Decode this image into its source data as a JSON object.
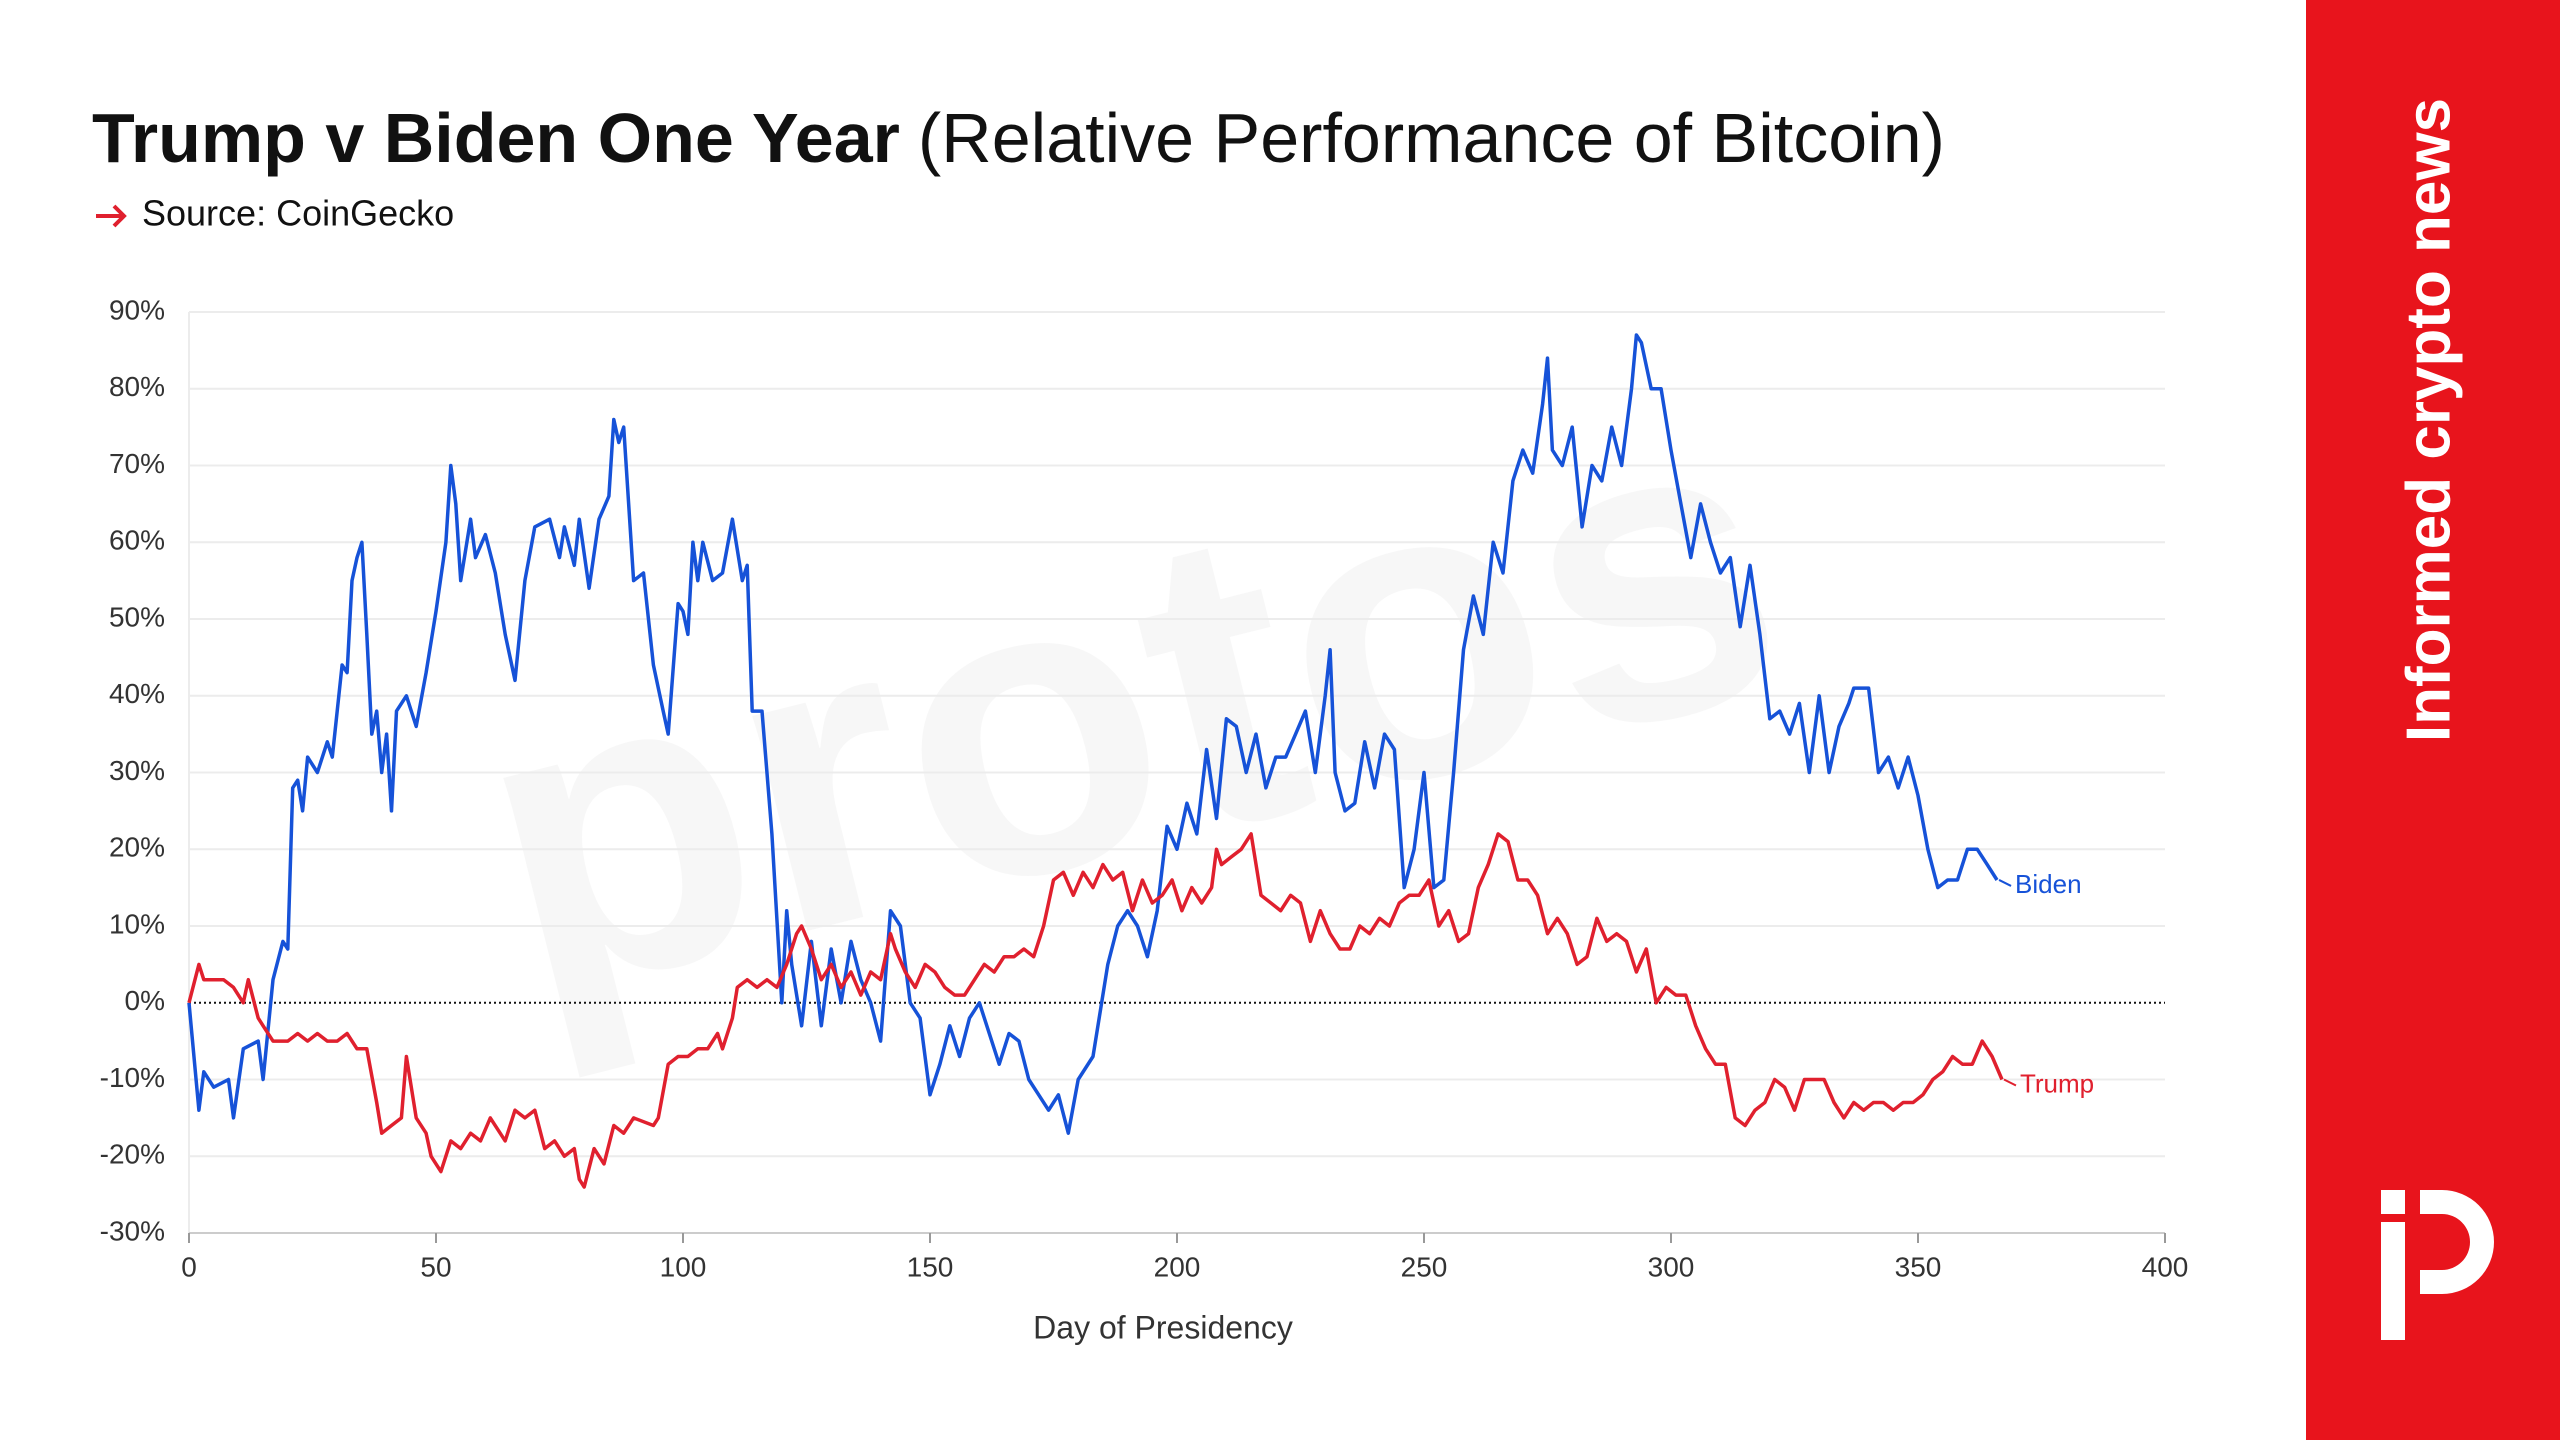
{
  "chart_data": {
    "type": "line",
    "title": "Trump v Biden One Year",
    "title_suffix": "(Relative Performance of Bitcoin)",
    "source": "Source: CoinGecko",
    "brand_tagline": "Informed crypto news",
    "watermark": "protos",
    "x_label": "Day of Presidency",
    "xlim": [
      0,
      400
    ],
    "xticks": [
      0,
      50,
      100,
      150,
      200,
      250,
      300,
      350,
      400
    ],
    "ylim": [
      -30,
      90
    ],
    "yticks": [
      {
        "value": -30,
        "label": "-30%"
      },
      {
        "value": -20,
        "label": "-20%"
      },
      {
        "value": -10,
        "label": "-10%"
      },
      {
        "value": 0,
        "label": "0%"
      },
      {
        "value": 10,
        "label": "10%"
      },
      {
        "value": 20,
        "label": "20%"
      },
      {
        "value": 30,
        "label": "30%"
      },
      {
        "value": 40,
        "label": "40%"
      },
      {
        "value": 50,
        "label": "50%"
      },
      {
        "value": 60,
        "label": "60%"
      },
      {
        "value": 70,
        "label": "70%"
      },
      {
        "value": 80,
        "label": "80%"
      },
      {
        "value": 90,
        "label": "90%"
      }
    ],
    "grid": true,
    "series": [
      {
        "name": "Biden",
        "color": "#1652d8",
        "x": [
          0,
          2,
          3,
          5,
          8,
          9,
          11,
          14,
          15,
          17,
          19,
          20,
          21,
          22,
          23,
          24,
          26,
          28,
          29,
          30,
          31,
          32,
          33,
          34,
          35,
          36,
          37,
          38,
          39,
          40,
          41,
          42,
          44,
          46,
          48,
          50,
          52,
          53,
          54,
          55,
          57,
          58,
          60,
          62,
          64,
          66,
          68,
          70,
          73,
          75,
          76,
          78,
          79,
          81,
          83,
          85,
          86,
          87,
          88,
          90,
          92,
          94,
          96,
          97,
          99,
          100,
          101,
          102,
          103,
          104,
          106,
          108,
          110,
          112,
          113,
          114,
          116,
          118,
          120,
          121,
          122,
          124,
          126,
          128,
          130,
          132,
          134,
          136,
          138,
          140,
          142,
          144,
          146,
          148,
          150,
          152,
          154,
          156,
          158,
          160,
          162,
          164,
          166,
          168,
          170,
          172,
          174,
          176,
          178,
          180,
          183,
          186,
          188,
          190,
          192,
          194,
          196,
          198,
          200,
          202,
          204,
          206,
          208,
          210,
          212,
          214,
          216,
          218,
          220,
          222,
          224,
          226,
          228,
          230,
          231,
          232,
          234,
          236,
          238,
          240,
          242,
          244,
          246,
          248,
          250,
          252,
          254,
          256,
          258,
          260,
          262,
          264,
          266,
          268,
          270,
          272,
          274,
          275,
          276,
          278,
          280,
          282,
          284,
          286,
          288,
          290,
          292,
          293,
          294,
          296,
          298,
          300,
          302,
          304,
          306,
          308,
          310,
          312,
          314,
          316,
          318,
          320,
          322,
          324,
          326,
          328,
          330,
          332,
          334,
          336,
          337,
          340,
          342,
          344,
          346,
          348,
          350,
          352,
          354,
          356,
          358,
          360,
          362,
          364,
          366
        ],
        "values": [
          0,
          -14,
          -9,
          -11,
          -10,
          -15,
          -6,
          -5,
          -10,
          3,
          8,
          7,
          28,
          29,
          25,
          32,
          30,
          34,
          32,
          38,
          44,
          43,
          55,
          58,
          60,
          48,
          35,
          38,
          30,
          35,
          25,
          38,
          40,
          36,
          43,
          51,
          60,
          70,
          65,
          55,
          63,
          58,
          61,
          56,
          48,
          42,
          55,
          62,
          63,
          58,
          62,
          57,
          63,
          54,
          63,
          66,
          76,
          73,
          75,
          55,
          56,
          44,
          38,
          35,
          52,
          51,
          48,
          60,
          55,
          60,
          55,
          56,
          63,
          55,
          57,
          38,
          38,
          22,
          0,
          12,
          5,
          -3,
          8,
          -3,
          7,
          0,
          8,
          3,
          0,
          -5,
          12,
          10,
          0,
          -2,
          -12,
          -8,
          -3,
          -7,
          -2,
          0,
          -4,
          -8,
          -4,
          -5,
          -10,
          -12,
          -14,
          -12,
          -17,
          -10,
          -7,
          5,
          10,
          12,
          10,
          6,
          12,
          23,
          20,
          26,
          22,
          33,
          24,
          37,
          36,
          30,
          35,
          28,
          32,
          32,
          35,
          38,
          30,
          40,
          46,
          30,
          25,
          26,
          34,
          28,
          35,
          33,
          15,
          20,
          30,
          15,
          16,
          30,
          46,
          53,
          48,
          60,
          56,
          68,
          72,
          69,
          78,
          84,
          72,
          70,
          75,
          62,
          70,
          68,
          75,
          70,
          80,
          87,
          86,
          80,
          80,
          72,
          65,
          58,
          65,
          60,
          56,
          58,
          49,
          57,
          48,
          37,
          38,
          35,
          39,
          30,
          40,
          30,
          36,
          39,
          41,
          41,
          30,
          32,
          28,
          32,
          27,
          20,
          15,
          16,
          16,
          20,
          20,
          18,
          16
        ]
      },
      {
        "name": "Trump",
        "color": "#e0202e",
        "x": [
          0,
          2,
          3,
          5,
          7,
          9,
          11,
          12,
          14,
          15,
          17,
          20,
          22,
          24,
          26,
          28,
          30,
          32,
          34,
          36,
          38,
          39,
          41,
          43,
          44,
          46,
          48,
          49,
          51,
          53,
          55,
          57,
          59,
          61,
          64,
          66,
          68,
          70,
          72,
          74,
          76,
          78,
          79,
          80,
          82,
          84,
          86,
          88,
          90,
          94,
          95,
          97,
          99,
          101,
          103,
          105,
          107,
          108,
          110,
          111,
          113,
          115,
          117,
          119,
          121,
          123,
          124,
          126,
          128,
          130,
          132,
          134,
          136,
          138,
          140,
          142,
          143,
          145,
          147,
          149,
          151,
          153,
          155,
          157,
          159,
          161,
          163,
          165,
          167,
          169,
          171,
          173,
          175,
          177,
          179,
          181,
          183,
          185,
          187,
          189,
          191,
          193,
          195,
          197,
          199,
          201,
          203,
          205,
          207,
          208,
          209,
          211,
          213,
          215,
          217,
          219,
          221,
          223,
          225,
          227,
          229,
          231,
          233,
          235,
          237,
          239,
          241,
          243,
          245,
          247,
          249,
          251,
          253,
          255,
          257,
          259,
          261,
          263,
          265,
          267,
          269,
          271,
          273,
          275,
          277,
          279,
          281,
          283,
          285,
          287,
          289,
          291,
          293,
          295,
          297,
          299,
          301,
          303,
          305,
          307,
          309,
          311,
          313,
          315,
          317,
          319,
          321,
          323,
          325,
          327,
          329,
          331,
          333,
          335,
          337,
          339,
          341,
          343,
          345,
          347,
          349,
          351,
          353,
          355,
          357,
          359,
          361,
          363,
          365,
          367
        ],
        "values": [
          0,
          5,
          3,
          3,
          3,
          2,
          0,
          3,
          -2,
          -3,
          -5,
          -5,
          -4,
          -5,
          -4,
          -5,
          -5,
          -4,
          -6,
          -6,
          -13,
          -17,
          -16,
          -15,
          -7,
          -15,
          -17,
          -20,
          -22,
          -18,
          -19,
          -17,
          -18,
          -15,
          -18,
          -14,
          -15,
          -14,
          -19,
          -18,
          -20,
          -19,
          -23,
          -24,
          -19,
          -21,
          -16,
          -17,
          -15,
          -16,
          -15,
          -8,
          -7,
          -7,
          -6,
          -6,
          -4,
          -6,
          -2,
          2,
          3,
          2,
          3,
          2,
          5,
          9,
          10,
          7,
          3,
          5,
          2,
          4,
          1,
          4,
          3,
          9,
          7,
          4,
          2,
          5,
          4,
          2,
          1,
          1,
          3,
          5,
          4,
          6,
          6,
          7,
          6,
          10,
          16,
          17,
          14,
          17,
          15,
          18,
          16,
          17,
          12,
          16,
          13,
          14,
          16,
          12,
          15,
          13,
          15,
          20,
          18,
          19,
          20,
          22,
          14,
          13,
          12,
          14,
          13,
          8,
          12,
          9,
          7,
          7,
          10,
          9,
          11,
          10,
          13,
          14,
          14,
          16,
          10,
          12,
          8,
          9,
          15,
          18,
          22,
          21,
          16,
          16,
          14,
          9,
          11,
          9,
          5,
          6,
          11,
          8,
          9,
          8,
          4,
          7,
          0,
          2,
          1,
          1,
          -3,
          -6,
          -8,
          -8,
          -15,
          -16,
          -14,
          -13,
          -10,
          -11,
          -14,
          -10,
          -10,
          -10,
          -13,
          -15,
          -13,
          -14,
          -13,
          -13,
          -14,
          -13,
          -13,
          -12,
          -10,
          -9,
          -7,
          -8,
          -8,
          -5,
          -7,
          -10
        ]
      }
    ]
  }
}
